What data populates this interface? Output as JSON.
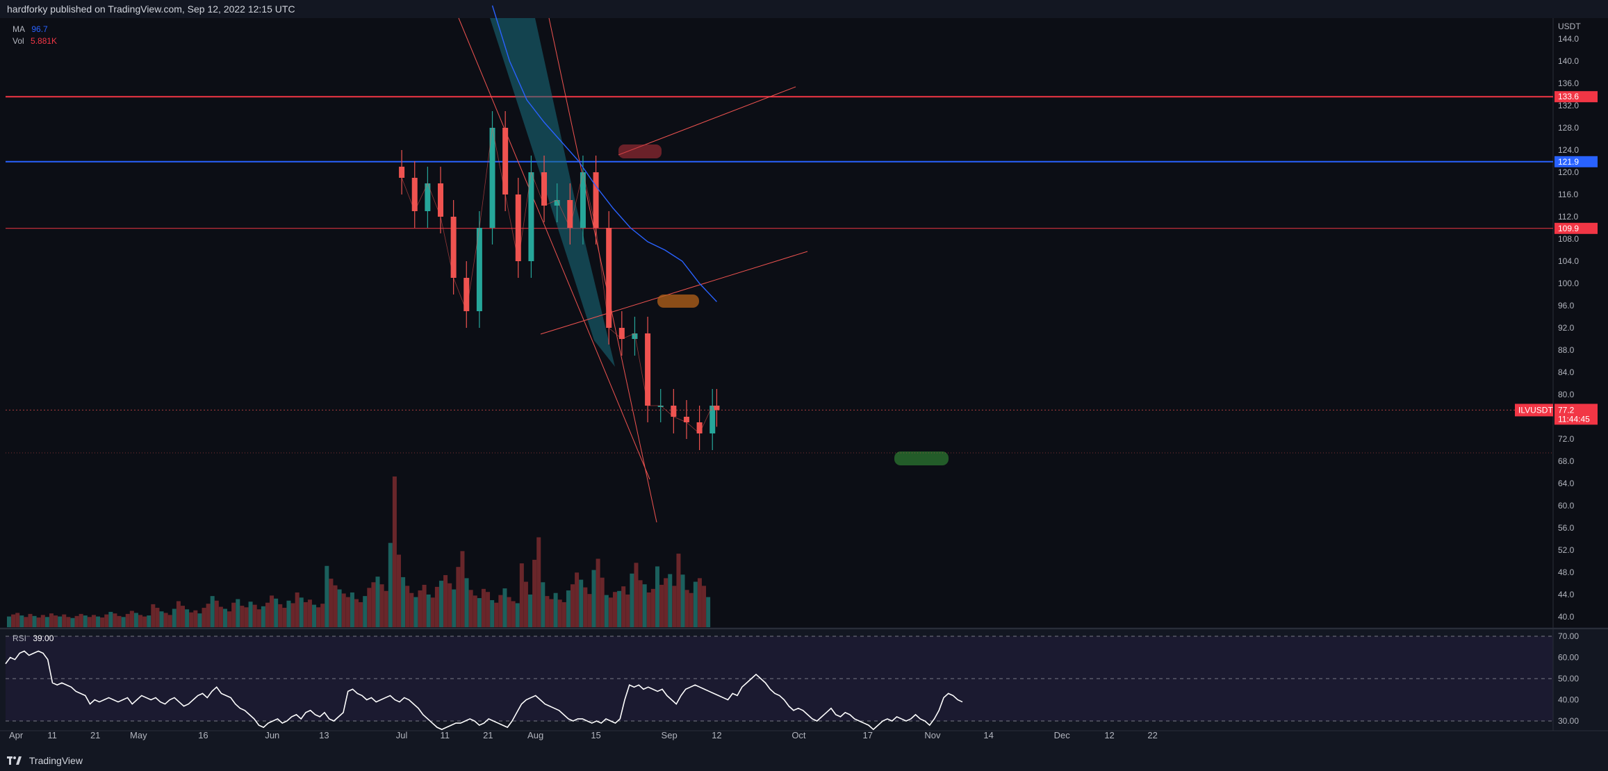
{
  "header": {
    "publisher_text": "hardforky published on TradingView.com, Sep 12, 2022 12:15 UTC"
  },
  "footer": {
    "brand": "TradingView"
  },
  "legend": {
    "ma_label": "MA",
    "ma_value": "96.7",
    "vol_label": "Vol",
    "vol_value": "5.881K",
    "rsi_label": "RSI",
    "rsi_value": "39.00"
  },
  "axis": {
    "currency": "USDT"
  },
  "symbol": {
    "name": "ILVUSDT",
    "price": "77.2",
    "countdown": "11:44:45"
  },
  "colors": {
    "background": "#131722",
    "up": "#26a69a",
    "down": "#ef5350",
    "ma": "#2962ff",
    "resistance": "#f23645",
    "support_blue": "#2962ff"
  },
  "levels": [
    {
      "value": 133.6,
      "label": "133.6",
      "color": "#f23645"
    },
    {
      "value": 121.9,
      "label": "121.9",
      "color": "#2962ff"
    },
    {
      "value": 109.9,
      "label": "109.9",
      "color": "#f23645"
    }
  ],
  "chart_data": {
    "type": "line",
    "title": "",
    "y_axis_ticks": [
      "144.0",
      "140.0",
      "136.0",
      "132.0",
      "128.0",
      "124.0",
      "120.0",
      "116.0",
      "112.0",
      "108.0",
      "104.0",
      "100.0",
      "96.0",
      "92.0",
      "88.0",
      "84.0",
      "80.0",
      "76.0",
      "72.0",
      "68.0",
      "64.0",
      "60.0",
      "56.0",
      "52.0",
      "48.0",
      "44.0",
      "40.0"
    ],
    "x_axis_ticks": [
      "Apr",
      "11",
      "21",
      "May",
      "16",
      "Jun",
      "13",
      "Jul",
      "11",
      "21",
      "Aug",
      "15",
      "Sep",
      "12",
      "Oct",
      "17",
      "Nov",
      "14",
      "Dec",
      "12",
      "22"
    ],
    "ylim": [
      38.5,
      146
    ],
    "ma_series": {
      "name": "MA",
      "x": [
        "Jul 22",
        "Jul 26",
        "Jul 30",
        "Aug 3",
        "Aug 7",
        "Aug 11",
        "Aug 15",
        "Aug 19",
        "Aug 23",
        "Aug 27",
        "Aug 31",
        "Sep 4",
        "Sep 8",
        "Sep 12"
      ],
      "values": [
        150.0,
        140.0,
        133.0,
        129.0,
        125.5,
        122.0,
        117.5,
        113.5,
        110.0,
        107.5,
        106.0,
        104.0,
        100.0,
        96.7
      ]
    },
    "price_series": {
      "name": "ILVUSDT",
      "x": [
        "Jul 1",
        "Jul 4",
        "Jul 7",
        "Jul 10",
        "Jul 13",
        "Jul 16",
        "Jul 19",
        "Jul 22",
        "Jul 25",
        "Jul 28",
        "Jul 31",
        "Aug 3",
        "Aug 6",
        "Aug 9",
        "Aug 12",
        "Aug 15",
        "Aug 18",
        "Aug 21",
        "Aug 24",
        "Aug 27",
        "Aug 30",
        "Sep 2",
        "Sep 5",
        "Sep 8",
        "Sep 11",
        "Sep 12"
      ],
      "values": [
        119.0,
        113.0,
        118.0,
        112.0,
        101.0,
        95.0,
        110.0,
        128.0,
        116.0,
        104.0,
        120.0,
        114.0,
        115.0,
        110.0,
        120.0,
        110.0,
        92.0,
        90.0,
        91.0,
        78.0,
        78.0,
        76.0,
        75.0,
        73.0,
        78.0,
        77.2
      ]
    },
    "volume_series": {
      "name": "Vol",
      "values_k": [
        2.1,
        2.5,
        2.8,
        2.3,
        2.0,
        2.6,
        2.2,
        1.9,
        2.4,
        2.0,
        2.7,
        2.3,
        2.1,
        2.5,
        2.0,
        1.8,
        2.2,
        2.6,
        2.3,
        2.0,
        2.4,
        2.1,
        1.9,
        2.5,
        3.0,
        2.7,
        2.2,
        2.0,
        2.6,
        3.2,
        2.8,
        2.4,
        2.1,
        2.3,
        4.5,
        3.8,
        3.1,
        2.8,
        2.4,
        3.6,
        5.1,
        4.2,
        3.5,
        2.9,
        3.3,
        2.7,
        3.8,
        4.6,
        6.1,
        5.2,
        4.0,
        3.6,
        3.1,
        4.8,
        5.5,
        4.2,
        3.9,
        5.0,
        4.4,
        3.5,
        4.1,
        4.8,
        6.2,
        5.6,
        4.5,
        3.8,
        5.2,
        4.7,
        6.8,
        5.8,
        4.9,
        5.4,
        4.4,
        3.9,
        4.6,
        12.0,
        9.5,
        8.2,
        7.4,
        6.6,
        5.9,
        6.8,
        5.5,
        4.9,
        6.1,
        7.7,
        8.8,
        9.9,
        8.4,
        7.1,
        16.5,
        29.5,
        14.2,
        9.8,
        8.1,
        6.7,
        5.9,
        7.2,
        8.3,
        6.4,
        5.8,
        7.9,
        9.1,
        10.2,
        8.6,
        7.4,
        11.8,
        14.9,
        9.6,
        7.3,
        6.2,
        5.7,
        7.5,
        6.9,
        5.3,
        4.8,
        6.3,
        7.6,
        5.9,
        5.1,
        4.7,
        12.5,
        8.9,
        6.4,
        13.2,
        17.6,
        8.8,
        6.1,
        5.5,
        6.7,
        5.4,
        4.9,
        7.2,
        8.4,
        10.7,
        9.3,
        7.8,
        6.5,
        11.2,
        13.4,
        9.7,
        6.3,
        5.8,
        6.9,
        7.1,
        8.0,
        6.4,
        10.5,
        12.6,
        9.2,
        8.4,
        6.8,
        7.5,
        11.9,
        8.3,
        9.6,
        10.4,
        8.1,
        14.4,
        10.3,
        7.3,
        6.7,
        8.9,
        9.6,
        8.1,
        5.9
      ]
    },
    "rsi_series": {
      "name": "RSI",
      "ylim": [
        28,
        72
      ],
      "ticks": [
        "70.00",
        "60.00",
        "50.00",
        "40.00",
        "30.00"
      ],
      "values": [
        57,
        60,
        59,
        62,
        63,
        61,
        62,
        63,
        62,
        59,
        48,
        47,
        48,
        47,
        46,
        44,
        43,
        42,
        38,
        40,
        39,
        40,
        41,
        40,
        39,
        40,
        41,
        38,
        40,
        42,
        41,
        40,
        41,
        39,
        38,
        40,
        41,
        39,
        37,
        38,
        40,
        42,
        43,
        41,
        44,
        46,
        43,
        42,
        41,
        38,
        36,
        35,
        33,
        31,
        28,
        27,
        29,
        30,
        31,
        29,
        30,
        32,
        33,
        31,
        34,
        35,
        33,
        32,
        34,
        31,
        30,
        32,
        34,
        44,
        45,
        43,
        42,
        40,
        41,
        39,
        40,
        41,
        42,
        40,
        39,
        41,
        40,
        38,
        36,
        33,
        31,
        29,
        27,
        26,
        27,
        28,
        29,
        29,
        30,
        31,
        30,
        28,
        29,
        31,
        30,
        29,
        28,
        27,
        30,
        34,
        38,
        40,
        41,
        42,
        40,
        38,
        37,
        36,
        35,
        33,
        31,
        30,
        31,
        31,
        30,
        29,
        30,
        29,
        31,
        30,
        29,
        31,
        40,
        47,
        46,
        47,
        45,
        46,
        45,
        44,
        45,
        42,
        40,
        38,
        42,
        45,
        46,
        47,
        46,
        45,
        44,
        43,
        42,
        41,
        40,
        43,
        42,
        46,
        48,
        50,
        52,
        50,
        48,
        45,
        43,
        42,
        40,
        37,
        35,
        36,
        35,
        33,
        31,
        30,
        32,
        34,
        36,
        33,
        32,
        34,
        33,
        31,
        30,
        29,
        28,
        26,
        28,
        30,
        31,
        30,
        32,
        31,
        30,
        31,
        33,
        31,
        30,
        28,
        31,
        35,
        41,
        43,
        42,
        40,
        39
      ]
    },
    "annotations": [
      "ILVUSDT 77.2",
      "133.6",
      "121.9",
      "109.9"
    ]
  }
}
